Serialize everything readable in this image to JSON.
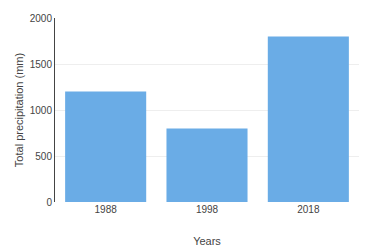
{
  "chart_data": {
    "type": "bar",
    "categories": [
      "1988",
      "1998",
      "2018"
    ],
    "values": [
      1200,
      800,
      1800
    ],
    "color": "#6aace6",
    "xlabel": "Years",
    "ylabel": "Total precipitation (mm)",
    "ylim": [
      0,
      2000
    ],
    "yticks": [
      0,
      500,
      1000,
      1500,
      2000
    ],
    "grid": true
  }
}
